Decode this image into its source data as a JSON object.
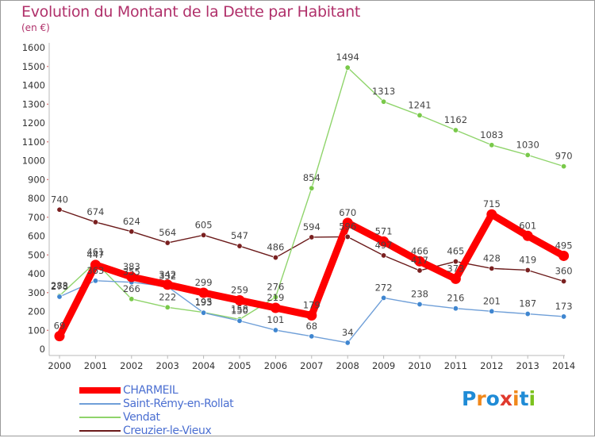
{
  "title": "Evolution du Montant de la Dette par Habitant",
  "subtitle": "(en €)",
  "logo": {
    "text": "Proxiti",
    "colors": [
      "#1f8bd6",
      "#f0881b",
      "#1f8bd6",
      "#e03a2e",
      "#f0881b",
      "#1f8bd6",
      "#7cc21e"
    ]
  },
  "chart_data": {
    "type": "line",
    "x": [
      "2000",
      "2001",
      "2002",
      "2003",
      "2004",
      "2005",
      "2006",
      "2007",
      "2008",
      "2009",
      "2010",
      "2011",
      "2012",
      "2013",
      "2014"
    ],
    "ylim": [
      0,
      1600
    ],
    "yticks": [
      "0",
      "100",
      "200",
      "300",
      "400",
      "500",
      "600",
      "700",
      "800",
      "900",
      "1000",
      "1100",
      "1200",
      "1300",
      "1400",
      "1500",
      "1600"
    ],
    "grid": false,
    "legend_position": "bottom-left",
    "series": [
      {
        "name": "Creuzier-le-Vieux",
        "color": "#6b1a1a",
        "marker": "#7a2020",
        "values": [
          740,
          674,
          624,
          564,
          605,
          547,
          486,
          594,
          596,
          497,
          417,
          465,
          428,
          419,
          360
        ],
        "labels": [
          "740",
          "674",
          "624",
          "564",
          "605",
          "547",
          "486",
          "594",
          "596",
          "497",
          "417",
          "465",
          "428",
          "419",
          "360"
        ]
      },
      {
        "name": "Vendat",
        "color": "#8fd46b",
        "marker": "#79c94a",
        "values": [
          283,
          461,
          266,
          222,
          195,
          158,
          276,
          854,
          1494,
          1313,
          1241,
          1162,
          1083,
          1030,
          970
        ],
        "labels": [
          "283",
          "461",
          "266",
          "222",
          "195",
          "158",
          "276",
          "854",
          "1494",
          "1313",
          "1241",
          "1162",
          "1083",
          "1030",
          "970"
        ]
      },
      {
        "name": "Saint-Rémy-en-Rollat",
        "color": "#6f9fd8",
        "marker": "#3f86d0",
        "values": [
          278,
          363,
          355,
          332,
          193,
          150,
          101,
          68,
          34,
          272,
          238,
          216,
          201,
          187,
          173
        ],
        "labels": [
          "278",
          "363",
          "355",
          "332",
          "193",
          "150",
          "101",
          "68",
          "34",
          "272",
          "238",
          "216",
          "201",
          "187",
          "173"
        ]
      },
      {
        "name": "CHARMEIL",
        "color": "#ff0000",
        "marker": "#ff0000",
        "values": [
          69,
          447,
          383,
          342,
          299,
          259,
          219,
          179,
          670,
          571,
          466,
          373,
          715,
          601,
          495
        ],
        "labels": [
          "69",
          "447",
          "383",
          "342",
          "299",
          "259",
          "219",
          "179",
          "670",
          "571",
          "466",
          "373",
          "715",
          "601",
          "495"
        ]
      }
    ],
    "legend": [
      "CHARMEIL",
      "Saint-Rémy-en-Rollat",
      "Vendat",
      "Creuzier-le-Vieux"
    ]
  }
}
